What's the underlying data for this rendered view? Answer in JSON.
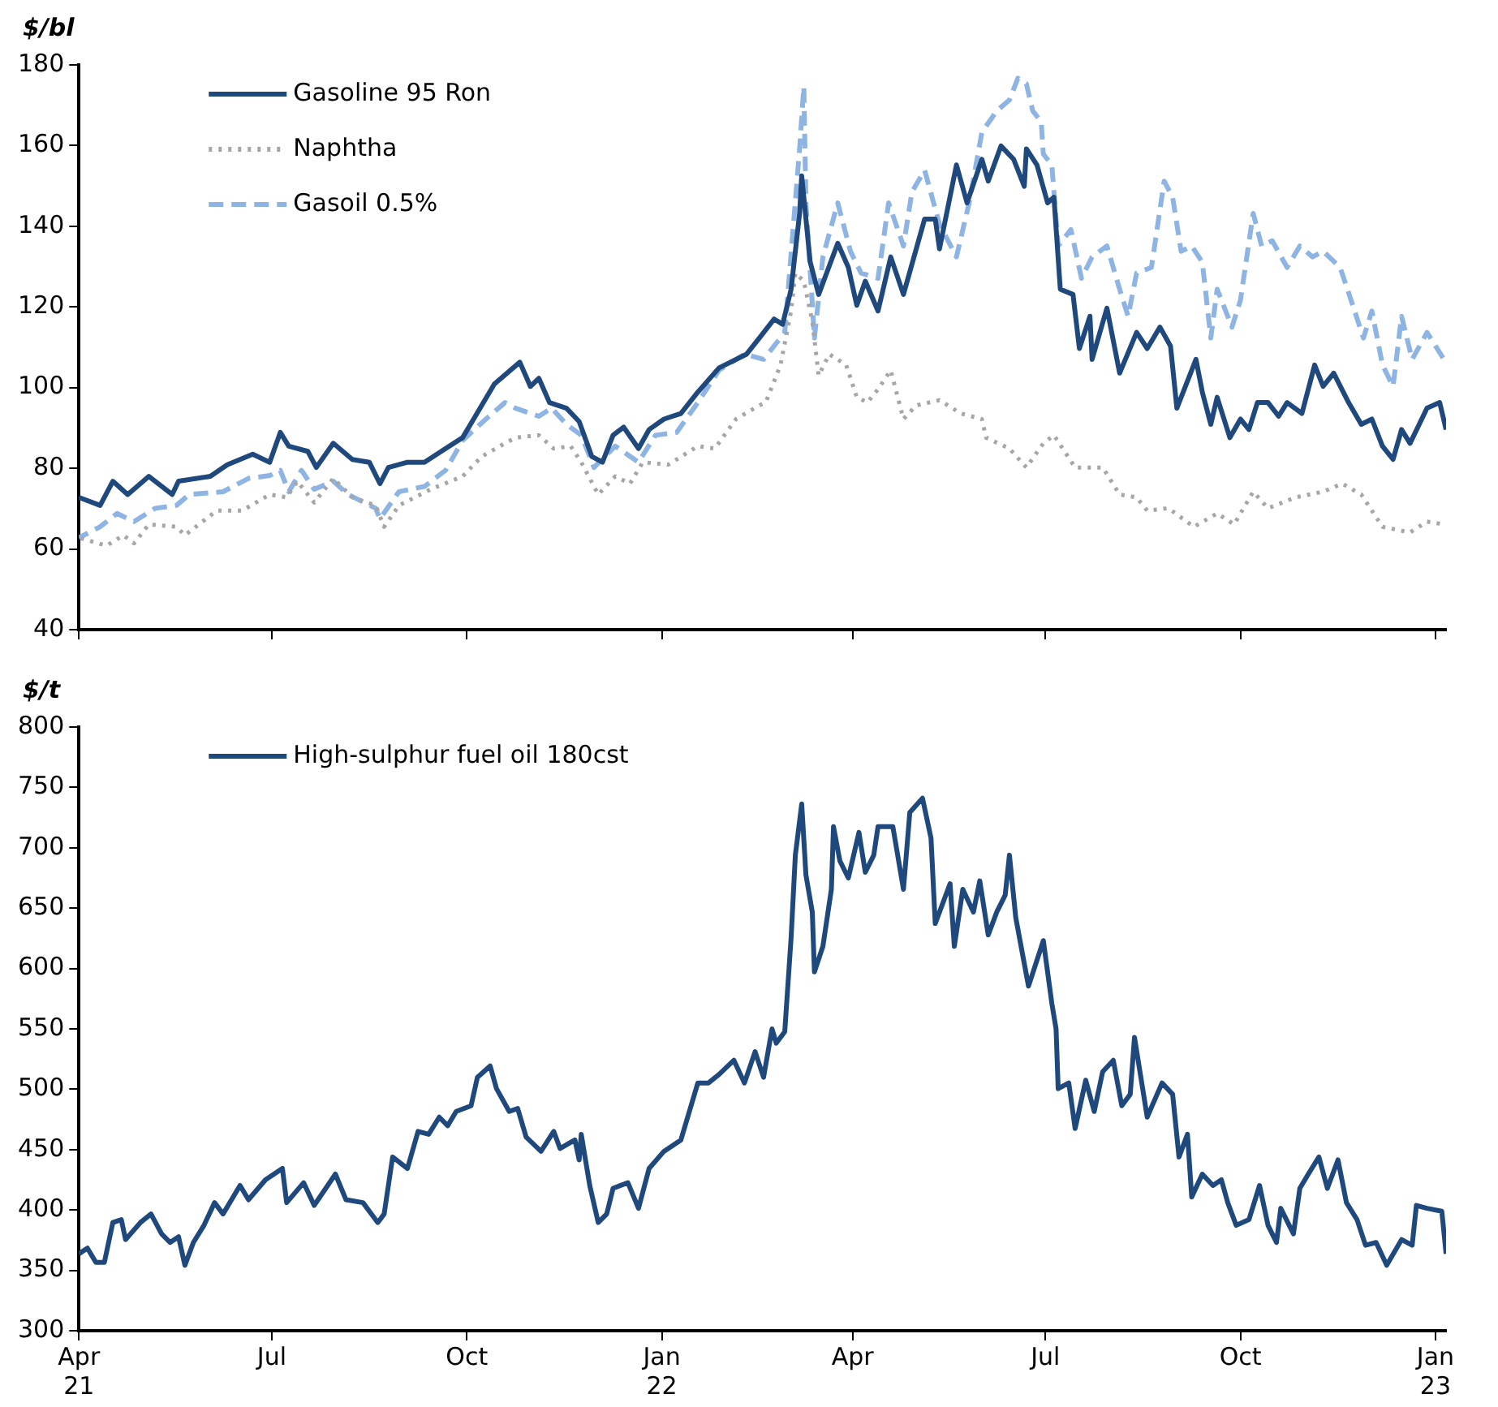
{
  "chart_data": [
    {
      "type": "line",
      "ylabel": "$/bl",
      "legend": "top left",
      "tick_labels": "y",
      "xlim": [
        "2021-04-01",
        "2023-01-06"
      ],
      "ylim": [
        40,
        180
      ],
      "yticks": [
        40,
        60,
        80,
        100,
        120,
        140,
        160,
        180
      ],
      "xticks": [
        {
          "value": "2021-04-01",
          "label": null
        },
        {
          "value": "2021-07-01",
          "label": null
        },
        {
          "value": "2021-10-01",
          "label": null
        },
        {
          "value": "2022-01-01",
          "label": null
        },
        {
          "value": "2022-04-01",
          "label": null
        },
        {
          "value": "2022-07-01",
          "label": null
        },
        {
          "value": "2022-10-01",
          "label": null
        },
        {
          "value": "2023-01-01",
          "label": null
        }
      ],
      "series": [
        {
          "name": "Gasoline 95 Ron",
          "color": "#1f497d",
          "line_style": "solid",
          "x": [
            "2021-04-01",
            "2021-04-11",
            "2021-04-17",
            "2021-04-24",
            "2021-05-04",
            "2021-05-15",
            "2021-05-18",
            "2021-06-02",
            "2021-06-10",
            "2021-06-22",
            "2021-06-30",
            "2021-07-05",
            "2021-07-09",
            "2021-07-18",
            "2021-07-22",
            "2021-07-30",
            "2021-08-08",
            "2021-08-16",
            "2021-08-21",
            "2021-08-25",
            "2021-09-03",
            "2021-09-11",
            "2021-09-21",
            "2021-09-29",
            "2021-10-05",
            "2021-10-14",
            "2021-10-26",
            "2021-10-31",
            "2021-11-04",
            "2021-11-09",
            "2021-11-17",
            "2021-11-23",
            "2021-11-29",
            "2021-12-04",
            "2021-12-09",
            "2021-12-14",
            "2021-12-21",
            "2021-12-26",
            "2022-01-02",
            "2022-01-10",
            "2022-01-18",
            "2022-01-28",
            "2022-02-10",
            "2022-02-16",
            "2022-02-23",
            "2022-02-27",
            "2022-03-03",
            "2022-03-07",
            "2022-03-08",
            "2022-03-12",
            "2022-03-16",
            "2022-03-25",
            "2022-03-30",
            "2022-04-03",
            "2022-04-07",
            "2022-04-13",
            "2022-04-19",
            "2022-04-25",
            "2022-05-05",
            "2022-05-10",
            "2022-05-12",
            "2022-05-20",
            "2022-05-25",
            "2022-06-01",
            "2022-06-04",
            "2022-06-10",
            "2022-06-16",
            "2022-06-21",
            "2022-06-22",
            "2022-06-27",
            "2022-07-02",
            "2022-07-05",
            "2022-07-08",
            "2022-07-14",
            "2022-07-17",
            "2022-07-22",
            "2022-07-23",
            "2022-07-30",
            "2022-08-05",
            "2022-08-13",
            "2022-08-18",
            "2022-08-24",
            "2022-08-29",
            "2022-09-01",
            "2022-09-10",
            "2022-09-13",
            "2022-09-17",
            "2022-09-20",
            "2022-09-26",
            "2022-10-01",
            "2022-10-05",
            "2022-10-09",
            "2022-10-14",
            "2022-10-19",
            "2022-10-23",
            "2022-10-30",
            "2022-11-05",
            "2022-11-09",
            "2022-11-14",
            "2022-11-21",
            "2022-11-27",
            "2022-12-02",
            "2022-12-07",
            "2022-12-12",
            "2022-12-16",
            "2022-12-20",
            "2022-12-28",
            "2023-01-03",
            "2023-01-06"
          ],
          "values": [
            72.8,
            70.8,
            76.8,
            73.5,
            78,
            73.5,
            76.8,
            78,
            80.9,
            83.5,
            81.5,
            88.9,
            85.5,
            84.2,
            80.2,
            86.2,
            82.2,
            81.5,
            76.2,
            80.2,
            81.5,
            81.5,
            84.9,
            87.6,
            92.9,
            100.9,
            106.3,
            100.3,
            102.3,
            96.3,
            94.9,
            91.6,
            82.9,
            81.5,
            88.2,
            90.2,
            84.9,
            89.6,
            92.2,
            93.6,
            98.9,
            104.9,
            108.3,
            112.3,
            117,
            115.7,
            124.4,
            143.2,
            152.5,
            131.1,
            123.1,
            135.8,
            129.8,
            120.4,
            126.4,
            119,
            132.4,
            123.1,
            141.8,
            141.8,
            134.4,
            155.2,
            145.8,
            156.6,
            151.2,
            159.9,
            156.6,
            149.9,
            159.2,
            155.2,
            145.8,
            147.2,
            124.4,
            123.1,
            109.7,
            117.7,
            107,
            119.7,
            103.6,
            113.7,
            109.7,
            115,
            110.3,
            94.9,
            107,
            98.9,
            90.9,
            97.6,
            87.6,
            92.2,
            89.6,
            96.3,
            96.3,
            92.9,
            96.3,
            93.6,
            105.6,
            100.3,
            103.6,
            96.3,
            90.9,
            92.2,
            85.5,
            82.2,
            89.6,
            86.2,
            94.9,
            96.3,
            89.6
          ]
        },
        {
          "name": "Naphtha",
          "color": "#a6a6a6",
          "line_style": "dotted",
          "x": [
            "2021-04-01",
            "2021-04-14",
            "2021-04-22",
            "2021-04-27",
            "2021-05-04",
            "2021-05-17",
            "2021-05-21",
            "2021-06-05",
            "2021-06-17",
            "2021-06-30",
            "2021-07-08",
            "2021-07-13",
            "2021-07-21",
            "2021-07-30",
            "2021-08-08",
            "2021-08-19",
            "2021-08-23",
            "2021-08-30",
            "2021-09-14",
            "2021-09-29",
            "2021-10-08",
            "2021-10-19",
            "2021-10-24",
            "2021-11-04",
            "2021-11-11",
            "2021-11-19",
            "2021-11-24",
            "2021-12-02",
            "2021-12-10",
            "2021-12-17",
            "2021-12-23",
            "2022-01-04",
            "2022-01-18",
            "2022-01-26",
            "2022-02-05",
            "2022-02-16",
            "2022-02-19",
            "2022-02-26",
            "2022-03-03",
            "2022-03-05",
            "2022-03-09",
            "2022-03-13",
            "2022-03-16",
            "2022-03-21",
            "2022-03-29",
            "2022-04-03",
            "2022-04-08",
            "2022-04-13",
            "2022-04-19",
            "2022-04-25",
            "2022-05-01",
            "2022-05-12",
            "2022-05-22",
            "2022-06-01",
            "2022-06-03",
            "2022-06-14",
            "2022-06-22",
            "2022-06-30",
            "2022-07-05",
            "2022-07-15",
            "2022-07-28",
            "2022-08-05",
            "2022-08-13",
            "2022-08-18",
            "2022-08-28",
            "2022-09-09",
            "2022-09-20",
            "2022-09-28",
            "2022-10-07",
            "2022-10-14",
            "2022-10-27",
            "2022-11-09",
            "2022-11-18",
            "2022-11-27",
            "2022-12-07",
            "2022-12-20",
            "2022-12-28",
            "2023-01-05"
          ],
          "values": [
            62.8,
            60.8,
            63.4,
            61.4,
            66.1,
            65.5,
            63.4,
            69.5,
            69.5,
            73.5,
            72.8,
            76.8,
            71.5,
            77.5,
            72.8,
            70.8,
            65.5,
            70.8,
            74.8,
            78,
            82.9,
            86.2,
            87.6,
            88.2,
            84.9,
            85.5,
            81.5,
            73.5,
            78,
            76.2,
            81.5,
            80.9,
            85.5,
            84.9,
            92.2,
            95.6,
            96.3,
            105.6,
            119,
            128.4,
            126.4,
            116.4,
            103,
            108.3,
            105.6,
            97.6,
            96.3,
            99.6,
            104.3,
            92.2,
            95.6,
            96.9,
            93.6,
            92.2,
            87.6,
            84.9,
            80.2,
            86.2,
            88.2,
            80.2,
            80.2,
            73.5,
            72.8,
            69.5,
            70.1,
            65.5,
            68.8,
            66.1,
            74.2,
            70.1,
            72.8,
            74.2,
            76.2,
            73.5,
            65.5,
            64.1,
            66.8,
            66.1
          ]
        },
        {
          "name": "Gasoil 0.5%",
          "color": "#8db4e2",
          "line_style": "dashed",
          "x": [
            "2021-04-01",
            "2021-04-11",
            "2021-04-19",
            "2021-04-27",
            "2021-05-07",
            "2021-05-17",
            "2021-05-23",
            "2021-06-08",
            "2021-06-20",
            "2021-06-30",
            "2021-07-05",
            "2021-07-09",
            "2021-07-15",
            "2021-07-21",
            "2021-07-30",
            "2021-08-06",
            "2021-08-19",
            "2021-08-21",
            "2021-08-30",
            "2021-09-11",
            "2021-09-21",
            "2021-09-29",
            "2021-10-10",
            "2021-10-19",
            "2021-10-24",
            "2021-11-04",
            "2021-11-10",
            "2021-11-17",
            "2021-11-24",
            "2021-11-30",
            "2021-12-10",
            "2021-12-21",
            "2021-12-29",
            "2022-01-08",
            "2022-01-18",
            "2022-01-28",
            "2022-02-09",
            "2022-02-18",
            "2022-02-28",
            "2022-03-07",
            "2022-03-09",
            "2022-03-10",
            "2022-03-14",
            "2022-03-18",
            "2022-03-25",
            "2022-03-31",
            "2022-04-05",
            "2022-04-13",
            "2022-04-18",
            "2022-04-25",
            "2022-04-29",
            "2022-05-05",
            "2022-05-12",
            "2022-05-20",
            "2022-05-26",
            "2022-06-01",
            "2022-06-08",
            "2022-06-14",
            "2022-06-18",
            "2022-06-22",
            "2022-06-25",
            "2022-06-29",
            "2022-06-30",
            "2022-07-04",
            "2022-07-07",
            "2022-07-13",
            "2022-07-18",
            "2022-07-23",
            "2022-07-30",
            "2022-08-05",
            "2022-08-09",
            "2022-08-13",
            "2022-08-20",
            "2022-08-26",
            "2022-08-30",
            "2022-09-03",
            "2022-09-08",
            "2022-09-13",
            "2022-09-17",
            "2022-09-20",
            "2022-09-27",
            "2022-10-01",
            "2022-10-07",
            "2022-10-11",
            "2022-10-16",
            "2022-10-23",
            "2022-10-29",
            "2022-11-04",
            "2022-11-09",
            "2022-11-17",
            "2022-11-23",
            "2022-11-28",
            "2022-12-02",
            "2022-12-07",
            "2022-12-12",
            "2022-12-16",
            "2022-12-21",
            "2022-12-28",
            "2023-01-05"
          ],
          "values": [
            62.8,
            65.5,
            68.8,
            66.8,
            70.1,
            70.8,
            73.5,
            74.2,
            77.5,
            78.2,
            79.5,
            74.2,
            79.5,
            74.8,
            76.8,
            73.5,
            70.1,
            67.5,
            74.2,
            75.5,
            79.5,
            86.9,
            92.2,
            96.3,
            94.9,
            92.9,
            94.9,
            90.9,
            88.2,
            80.2,
            85.5,
            81.5,
            88.2,
            88.9,
            96.3,
            104.3,
            108.3,
            107,
            113.7,
            159.2,
            174.6,
            145.8,
            112.3,
            132.4,
            145.8,
            133.8,
            128.4,
            127.1,
            145.8,
            135.1,
            148.5,
            153.9,
            140.5,
            132.4,
            145.8,
            163.3,
            168.6,
            171.3,
            176.7,
            175.3,
            168.6,
            165.9,
            157.9,
            155.2,
            135.1,
            139.2,
            127.1,
            132.4,
            135.1,
            124.4,
            117.7,
            128.4,
            129.8,
            151.2,
            147.2,
            133.8,
            135.1,
            131.1,
            112.3,
            124.4,
            115,
            121.7,
            143.2,
            135.1,
            136.4,
            129.8,
            135.1,
            132.4,
            133.8,
            129.8,
            120.4,
            112.3,
            119,
            105.6,
            100.3,
            117.7,
            107,
            113.7,
            107
          ]
        }
      ]
    },
    {
      "type": "line",
      "ylabel": "$/t",
      "legend": "top left",
      "xlim": [
        "2021-04-01",
        "2023-01-06"
      ],
      "ylim": [
        300,
        800
      ],
      "yticks": [
        300,
        350,
        400,
        450,
        500,
        550,
        600,
        650,
        700,
        750,
        800
      ],
      "xticks": [
        {
          "value": "2021-04-01",
          "label": "Apr\n21"
        },
        {
          "value": "2021-07-01",
          "label": "Jul"
        },
        {
          "value": "2021-10-01",
          "label": "Oct"
        },
        {
          "value": "2022-01-01",
          "label": "Jan\n22"
        },
        {
          "value": "2022-04-01",
          "label": "Apr"
        },
        {
          "value": "2022-07-01",
          "label": "Jul"
        },
        {
          "value": "2022-10-01",
          "label": "Oct"
        },
        {
          "value": "2023-01-01",
          "label": "Jan\n23"
        }
      ],
      "series": [
        {
          "name": "High-sulphur fuel oil 180cst",
          "color": "#1f497d",
          "line_style": "solid",
          "x": [
            "2021-04-01",
            "2021-04-05",
            "2021-04-09",
            "2021-04-13",
            "2021-04-17",
            "2021-04-21",
            "2021-04-23",
            "2021-04-30",
            "2021-05-05",
            "2021-05-10",
            "2021-05-14",
            "2021-05-18",
            "2021-05-21",
            "2021-05-25",
            "2021-05-30",
            "2021-06-04",
            "2021-06-08",
            "2021-06-16",
            "2021-06-20",
            "2021-06-28",
            "2021-07-06",
            "2021-07-08",
            "2021-07-16",
            "2021-07-21",
            "2021-07-31",
            "2021-08-05",
            "2021-08-13",
            "2021-08-20",
            "2021-08-23",
            "2021-08-27",
            "2021-09-03",
            "2021-09-08",
            "2021-09-13",
            "2021-09-18",
            "2021-09-22",
            "2021-09-26",
            "2021-10-03",
            "2021-10-06",
            "2021-10-12",
            "2021-10-15",
            "2021-10-21",
            "2021-10-25",
            "2021-10-29",
            "2021-11-05",
            "2021-11-11",
            "2021-11-14",
            "2021-11-21",
            "2021-11-23",
            "2021-11-24",
            "2021-11-28",
            "2021-12-02",
            "2021-12-06",
            "2021-12-09",
            "2021-12-16",
            "2021-12-21",
            "2021-12-26",
            "2022-01-02",
            "2022-01-10",
            "2022-01-18",
            "2022-01-23",
            "2022-01-28",
            "2022-02-04",
            "2022-02-09",
            "2022-02-14",
            "2022-02-18",
            "2022-02-22",
            "2022-02-24",
            "2022-02-28",
            "2022-03-03",
            "2022-03-05",
            "2022-03-08",
            "2022-03-10",
            "2022-03-13",
            "2022-03-14",
            "2022-03-18",
            "2022-03-22",
            "2022-03-23",
            "2022-03-26",
            "2022-03-30",
            "2022-04-04",
            "2022-04-07",
            "2022-04-11",
            "2022-04-13",
            "2022-04-20",
            "2022-04-25",
            "2022-04-28",
            "2022-05-04",
            "2022-05-08",
            "2022-05-10",
            "2022-05-17",
            "2022-05-19",
            "2022-05-23",
            "2022-05-28",
            "2022-05-31",
            "2022-06-04",
            "2022-06-08",
            "2022-06-12",
            "2022-06-14",
            "2022-06-17",
            "2022-06-21",
            "2022-06-23",
            "2022-06-30",
            "2022-07-04",
            "2022-07-06",
            "2022-07-07",
            "2022-07-12",
            "2022-07-15",
            "2022-07-20",
            "2022-07-24",
            "2022-07-28",
            "2022-08-02",
            "2022-08-06",
            "2022-08-10",
            "2022-08-12",
            "2022-08-18",
            "2022-08-25",
            "2022-08-30",
            "2022-09-02",
            "2022-09-06",
            "2022-09-08",
            "2022-09-13",
            "2022-09-18",
            "2022-09-22",
            "2022-09-25",
            "2022-09-29",
            "2022-10-05",
            "2022-10-10",
            "2022-10-14",
            "2022-10-18",
            "2022-10-20",
            "2022-10-26",
            "2022-10-29",
            "2022-11-02",
            "2022-11-07",
            "2022-11-11",
            "2022-11-16",
            "2022-11-20",
            "2022-11-25",
            "2022-11-29",
            "2022-12-04",
            "2022-12-09",
            "2022-12-16",
            "2022-12-21",
            "2022-12-23",
            "2022-12-28",
            "2023-01-04",
            "2023-01-06"
          ],
          "values": [
            363.7,
            368.4,
            356.6,
            356.6,
            389.6,
            392,
            375.5,
            389.6,
            396.7,
            380.2,
            373.1,
            377.8,
            354.2,
            373.1,
            387.3,
            406.1,
            396.7,
            420.3,
            408.5,
            425,
            434.4,
            406.1,
            422.6,
            403.8,
            429.7,
            408.5,
            406.1,
            389.6,
            396.7,
            443.9,
            434.4,
            465.1,
            462.7,
            476.9,
            469.8,
            481.6,
            486.3,
            509.9,
            519.3,
            500.5,
            481.6,
            484,
            460.4,
            448.6,
            465.1,
            450.9,
            458,
            441.5,
            462.7,
            420.3,
            389.6,
            396.7,
            417.9,
            422.6,
            401.4,
            434.4,
            448.6,
            458,
            505.2,
            505.2,
            512.3,
            524,
            505.2,
            531.1,
            509.9,
            550,
            538.2,
            547.6,
            625.5,
            693.9,
            736.3,
            677.4,
            646.7,
            597.2,
            618.4,
            665.6,
            717.5,
            689.2,
            675,
            712.7,
            679.7,
            693.9,
            717.5,
            717.5,
            665.6,
            729.2,
            741,
            708,
            637.3,
            670.3,
            618.4,
            665.6,
            646.7,
            672.6,
            627.8,
            646.7,
            660.8,
            693.9,
            642,
            604.2,
            585.4,
            623.1,
            571.2,
            550,
            500.5,
            505.2,
            467.5,
            507.5,
            481.6,
            514.6,
            524,
            486.3,
            495.8,
            542.9,
            476.9,
            505.2,
            495.8,
            443.9,
            462.7,
            410.8,
            429.7,
            420.3,
            425,
            406.1,
            387.3,
            392,
            420.3,
            387.3,
            373.1,
            401.4,
            380.2,
            417.9,
            429.7,
            443.9,
            417.9,
            441.5,
            406.1,
            392,
            370.8,
            373.1,
            354.2,
            375.5,
            370.8,
            403.8,
            401.4,
            399,
            363.7
          ]
        }
      ]
    }
  ]
}
